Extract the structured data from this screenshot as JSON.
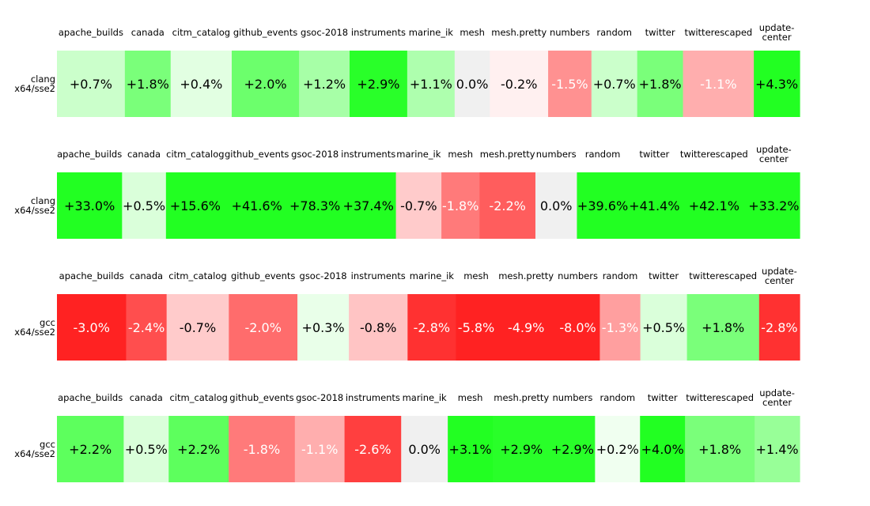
{
  "chart_data": [
    {
      "type": "heatmap",
      "row_label": [
        "clang",
        "x64/sse2"
      ],
      "columns": [
        {
          "label": [
            "apache_builds"
          ],
          "value": 0.7,
          "text": "+0.7%"
        },
        {
          "label": [
            "canada"
          ],
          "value": 1.8,
          "text": "+1.8%"
        },
        {
          "label": [
            "citm_catalog"
          ],
          "value": 0.4,
          "text": "+0.4%"
        },
        {
          "label": [
            "github_events"
          ],
          "value": 2.0,
          "text": "+2.0%"
        },
        {
          "label": [
            "gsoc-2018"
          ],
          "value": 1.2,
          "text": "+1.2%"
        },
        {
          "label": [
            "instruments"
          ],
          "value": 2.9,
          "text": "+2.9%"
        },
        {
          "label": [
            "marine_ik"
          ],
          "value": 1.1,
          "text": "+1.1%"
        },
        {
          "label": [
            "mesh"
          ],
          "value": 0.0,
          "text": "0.0%"
        },
        {
          "label": [
            "mesh.pretty"
          ],
          "value": -0.2,
          "text": "-0.2%"
        },
        {
          "label": [
            "numbers"
          ],
          "value": -1.5,
          "text": "-1.5%"
        },
        {
          "label": [
            "random"
          ],
          "value": 0.7,
          "text": "+0.7%"
        },
        {
          "label": [
            "twitter"
          ],
          "value": 1.8,
          "text": "+1.8%"
        },
        {
          "label": [
            "twitterescaped"
          ],
          "value": -1.1,
          "text": "-1.1%"
        },
        {
          "label": [
            "update-",
            "center"
          ],
          "value": 4.3,
          "text": "+4.3%"
        }
      ]
    },
    {
      "type": "heatmap",
      "row_label": [
        "clang",
        "x64/sse2"
      ],
      "columns": [
        {
          "label": [
            "apache_builds"
          ],
          "value": 33.0,
          "text": "+33.0%"
        },
        {
          "label": [
            "canada"
          ],
          "value": 0.5,
          "text": "+0.5%"
        },
        {
          "label": [
            "citm_catalog"
          ],
          "value": 15.6,
          "text": "+15.6%"
        },
        {
          "label": [
            "github_events"
          ],
          "value": 41.6,
          "text": "+41.6%"
        },
        {
          "label": [
            "gsoc-2018"
          ],
          "value": 78.3,
          "text": "+78.3%"
        },
        {
          "label": [
            "instruments"
          ],
          "value": 37.4,
          "text": "+37.4%"
        },
        {
          "label": [
            "marine_ik"
          ],
          "value": -0.7,
          "text": "-0.7%"
        },
        {
          "label": [
            "mesh"
          ],
          "value": -1.8,
          "text": "-1.8%"
        },
        {
          "label": [
            "mesh.pretty"
          ],
          "value": -2.2,
          "text": "-2.2%"
        },
        {
          "label": [
            "numbers"
          ],
          "value": 0.0,
          "text": "0.0%"
        },
        {
          "label": [
            "random"
          ],
          "value": 39.6,
          "text": "+39.6%"
        },
        {
          "label": [
            "twitter"
          ],
          "value": 41.4,
          "text": "+41.4%"
        },
        {
          "label": [
            "twitterescaped"
          ],
          "value": 42.1,
          "text": "+42.1%"
        },
        {
          "label": [
            "update-",
            "center"
          ],
          "value": 33.2,
          "text": "+33.2%"
        }
      ]
    },
    {
      "type": "heatmap",
      "row_label": [
        "gcc",
        "x64/sse2"
      ],
      "columns": [
        {
          "label": [
            "apache_builds"
          ],
          "value": -3.0,
          "text": "-3.0%"
        },
        {
          "label": [
            "canada"
          ],
          "value": -2.4,
          "text": "-2.4%"
        },
        {
          "label": [
            "citm_catalog"
          ],
          "value": -0.7,
          "text": "-0.7%"
        },
        {
          "label": [
            "github_events"
          ],
          "value": -2.0,
          "text": "-2.0%"
        },
        {
          "label": [
            "gsoc-2018"
          ],
          "value": 0.3,
          "text": "+0.3%"
        },
        {
          "label": [
            "instruments"
          ],
          "value": -0.8,
          "text": "-0.8%"
        },
        {
          "label": [
            "marine_ik"
          ],
          "value": -2.8,
          "text": "-2.8%"
        },
        {
          "label": [
            "mesh"
          ],
          "value": -5.8,
          "text": "-5.8%"
        },
        {
          "label": [
            "mesh.pretty"
          ],
          "value": -4.9,
          "text": "-4.9%"
        },
        {
          "label": [
            "numbers"
          ],
          "value": -8.0,
          "text": "-8.0%"
        },
        {
          "label": [
            "random"
          ],
          "value": -1.3,
          "text": "-1.3%"
        },
        {
          "label": [
            "twitter"
          ],
          "value": 0.5,
          "text": "+0.5%"
        },
        {
          "label": [
            "twitterescaped"
          ],
          "value": 1.8,
          "text": "+1.8%"
        },
        {
          "label": [
            "update-",
            "center"
          ],
          "value": -2.8,
          "text": "-2.8%"
        }
      ]
    },
    {
      "type": "heatmap",
      "row_label": [
        "gcc",
        "x64/sse2"
      ],
      "columns": [
        {
          "label": [
            "apache_builds"
          ],
          "value": 2.2,
          "text": "+2.2%"
        },
        {
          "label": [
            "canada"
          ],
          "value": 0.5,
          "text": "+0.5%"
        },
        {
          "label": [
            "citm_catalog"
          ],
          "value": 2.2,
          "text": "+2.2%"
        },
        {
          "label": [
            "github_events"
          ],
          "value": -1.8,
          "text": "-1.8%"
        },
        {
          "label": [
            "gsoc-2018"
          ],
          "value": -1.1,
          "text": "-1.1%"
        },
        {
          "label": [
            "instruments"
          ],
          "value": -2.6,
          "text": "-2.6%"
        },
        {
          "label": [
            "marine_ik"
          ],
          "value": 0.0,
          "text": "0.0%"
        },
        {
          "label": [
            "mesh"
          ],
          "value": 3.1,
          "text": "+3.1%"
        },
        {
          "label": [
            "mesh.pretty"
          ],
          "value": 2.9,
          "text": "+2.9%"
        },
        {
          "label": [
            "numbers"
          ],
          "value": 2.9,
          "text": "+2.9%"
        },
        {
          "label": [
            "random"
          ],
          "value": 0.2,
          "text": "+0.2%"
        },
        {
          "label": [
            "twitter"
          ],
          "value": 4.0,
          "text": "+4.0%"
        },
        {
          "label": [
            "twitterescaped"
          ],
          "value": 1.8,
          "text": "+1.8%"
        },
        {
          "label": [
            "update-",
            "center"
          ],
          "value": 1.4,
          "text": "+1.4%"
        }
      ]
    }
  ],
  "colors": {
    "positive_max": "#22ff22",
    "negative_max": "#ff2222",
    "neutral": "#f0f0f0",
    "text_dark": "#000000",
    "text_light": "#ffffff"
  }
}
